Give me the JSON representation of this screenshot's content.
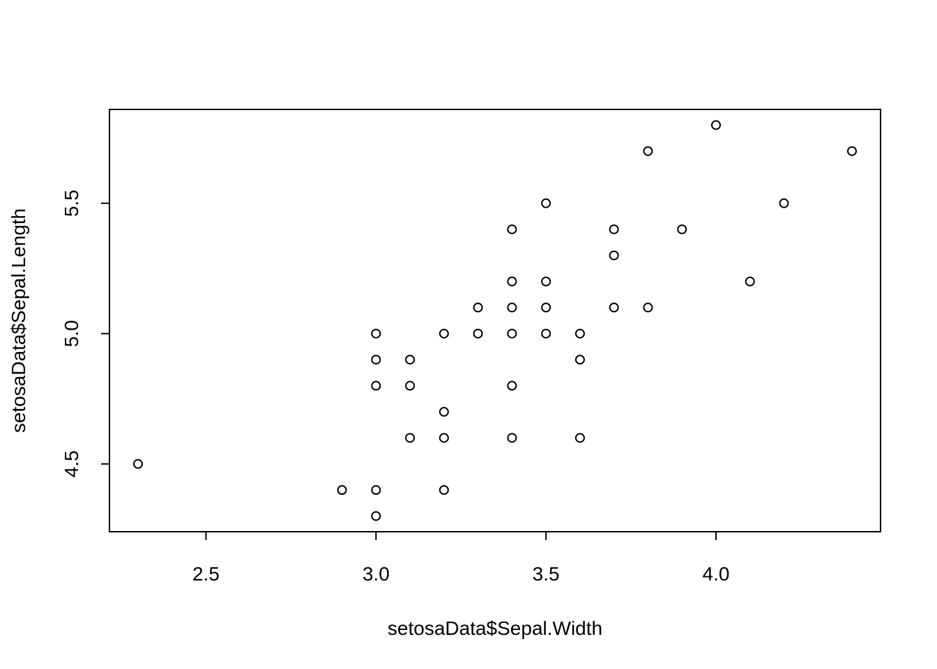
{
  "chart_data": {
    "type": "scatter",
    "x_label": "setosaData$Sepal.Width",
    "y_label": "setosaData$Sepal.Length",
    "x": [
      2.3,
      2.9,
      3.0,
      3.0,
      3.0,
      3.0,
      3.0,
      3.1,
      3.1,
      3.1,
      3.2,
      3.2,
      3.2,
      3.2,
      3.3,
      3.3,
      3.4,
      3.4,
      3.4,
      3.4,
      3.4,
      3.4,
      3.5,
      3.5,
      3.5,
      3.5,
      3.6,
      3.6,
      3.6,
      3.7,
      3.7,
      3.7,
      3.8,
      3.8,
      3.9,
      4.0,
      4.1,
      4.2,
      4.4
    ],
    "y": [
      4.5,
      4.4,
      4.4,
      4.3,
      4.8,
      4.9,
      5.0,
      4.9,
      4.8,
      4.6,
      5.0,
      4.7,
      4.6,
      4.4,
      5.1,
      5.0,
      5.4,
      5.2,
      5.1,
      5.0,
      4.8,
      4.6,
      5.5,
      5.2,
      5.1,
      5.0,
      5.0,
      4.9,
      4.6,
      5.4,
      5.3,
      5.1,
      5.7,
      5.1,
      5.4,
      5.8,
      5.2,
      5.5,
      5.7
    ],
    "color": "#000000",
    "xlim": [
      2.216,
      4.484
    ],
    "ylim": [
      4.24,
      5.86
    ],
    "xticks": [
      2.5,
      {
        "value": 3,
        "label": "3.0"
      },
      3.5,
      {
        "value": 4,
        "label": "4.0"
      }
    ],
    "yticks": [
      4.5,
      {
        "value": 5,
        "label": "5.0"
      },
      5.5
    ]
  }
}
